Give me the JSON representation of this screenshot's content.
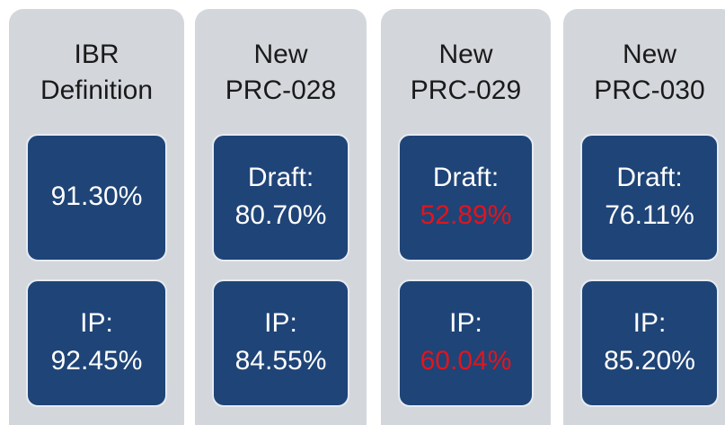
{
  "columns": [
    {
      "title": [
        "IBR",
        "Definition"
      ],
      "boxes": [
        {
          "lines": [
            "91.30%"
          ]
        },
        {
          "lines": [
            "IP:",
            "92.45%"
          ]
        }
      ]
    },
    {
      "title": [
        "New",
        "PRC-028"
      ],
      "boxes": [
        {
          "lines": [
            "Draft:",
            "80.70%"
          ]
        },
        {
          "lines": [
            "IP:",
            "84.55%"
          ]
        }
      ]
    },
    {
      "title": [
        "New",
        "PRC-029"
      ],
      "boxes": [
        {
          "lines": [
            "Draft:",
            "52.89%"
          ],
          "value_color": "#e3141c"
        },
        {
          "lines": [
            "IP:",
            "60.04%"
          ],
          "value_color": "#e3141c"
        }
      ]
    },
    {
      "title": [
        "New",
        "PRC-030"
      ],
      "boxes": [
        {
          "lines": [
            "Draft:",
            "76.11%"
          ]
        },
        {
          "lines": [
            "IP:",
            "85.20%"
          ]
        }
      ]
    }
  ]
}
